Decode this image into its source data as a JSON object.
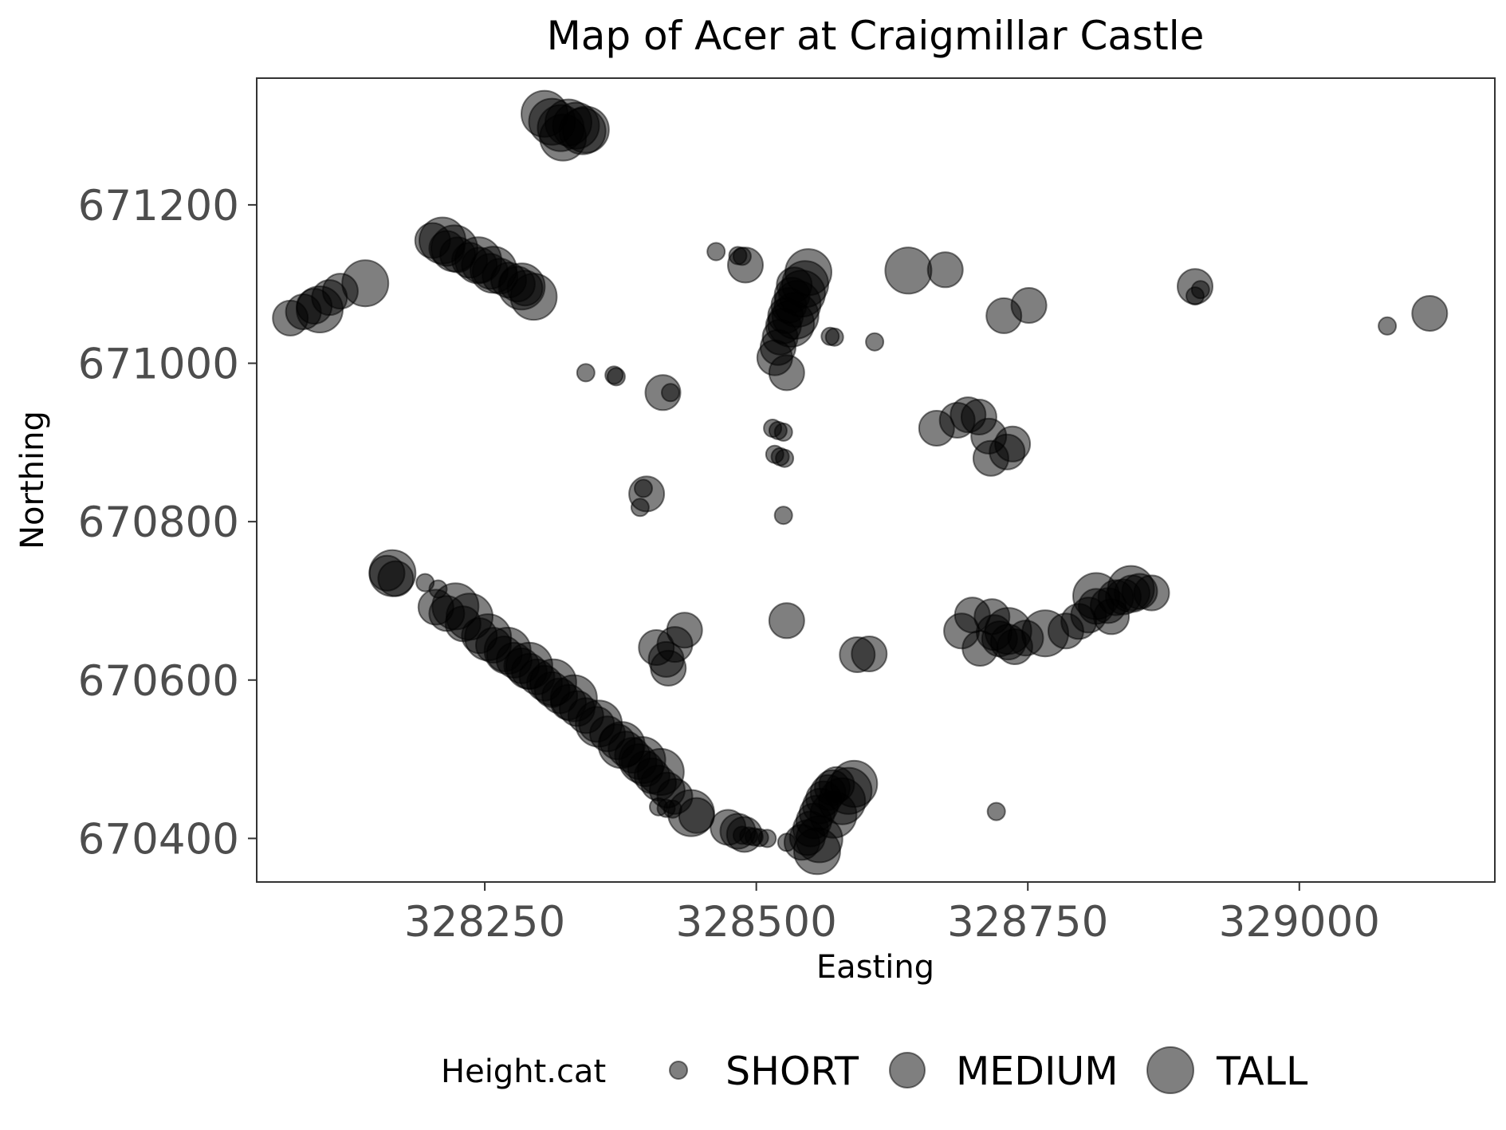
{
  "chart_data": {
    "type": "scatter",
    "title": "Map of Acer at Craigmillar Castle",
    "xlabel": "Easting",
    "ylabel": "Northing",
    "xlim": [
      328040,
      329180
    ],
    "ylim": [
      670345,
      671360
    ],
    "xticks": [
      {
        "value": 328250,
        "label": "328250"
      },
      {
        "value": 328500,
        "label": "328500"
      },
      {
        "value": 328750,
        "label": "328750"
      },
      {
        "value": 329000,
        "label": "329000"
      }
    ],
    "yticks": [
      {
        "value": 670400,
        "label": "670400"
      },
      {
        "value": 670600,
        "label": "670600"
      },
      {
        "value": 670800,
        "label": "670800"
      },
      {
        "value": 671000,
        "label": "671000"
      },
      {
        "value": 671200,
        "label": "671200"
      }
    ],
    "grid": false,
    "point_color": "#000000",
    "point_opacity": 0.5,
    "legend": {
      "title": "Height.cat",
      "position": "bottom",
      "items": [
        {
          "key": "SHORT",
          "label": "SHORT"
        },
        {
          "key": "MEDIUM",
          "label": "MEDIUM"
        },
        {
          "key": "TALL",
          "label": "TALL"
        }
      ]
    },
    "series": [
      {
        "name": "SHORT",
        "points": [
          [
            328343,
            670988
          ],
          [
            328369,
            670985
          ],
          [
            328371,
            670983
          ],
          [
            328421,
            670963
          ],
          [
            328396,
            670842
          ],
          [
            328393,
            670818
          ],
          [
            328463,
            671141
          ],
          [
            328483,
            671136
          ],
          [
            328487,
            671135
          ],
          [
            328568,
            671034
          ],
          [
            328572,
            671033
          ],
          [
            328609,
            671027
          ],
          [
            328515,
            670918
          ],
          [
            328520,
            670915
          ],
          [
            328525,
            670913
          ],
          [
            328517,
            670885
          ],
          [
            328522,
            670882
          ],
          [
            328526,
            670880
          ],
          [
            328525,
            670808
          ],
          [
            328721,
            670434
          ],
          [
            328904,
            671085
          ],
          [
            328909,
            671093
          ],
          [
            329081,
            671047
          ],
          [
            328195,
            670723
          ],
          [
            328207,
            670715
          ],
          [
            328410,
            670440
          ],
          [
            328417,
            670438
          ],
          [
            328423,
            670437
          ],
          [
            328487,
            670404
          ],
          [
            328493,
            670403
          ],
          [
            328498,
            670402
          ],
          [
            328503,
            670401
          ],
          [
            328510,
            670400
          ],
          [
            328528,
            670395
          ]
        ]
      },
      {
        "name": "MEDIUM",
        "points": [
          [
            328071,
            671057
          ],
          [
            328083,
            671065
          ],
          [
            328093,
            671072
          ],
          [
            328107,
            671083
          ],
          [
            328117,
            671091
          ],
          [
            328202,
            671155
          ],
          [
            328215,
            671145
          ],
          [
            328225,
            671137
          ],
          [
            328236,
            671130
          ],
          [
            328245,
            671124
          ],
          [
            328255,
            671116
          ],
          [
            328264,
            671110
          ],
          [
            328272,
            671105
          ],
          [
            328280,
            671100
          ],
          [
            328287,
            671095
          ],
          [
            328160,
            670735
          ],
          [
            328168,
            670728
          ],
          [
            328205,
            670692
          ],
          [
            328215,
            670684
          ],
          [
            328230,
            670671
          ],
          [
            328245,
            670656
          ],
          [
            328258,
            670644
          ],
          [
            328268,
            670633
          ],
          [
            328277,
            670625
          ],
          [
            328284,
            670618
          ],
          [
            328291,
            670611
          ],
          [
            328298,
            670604
          ],
          [
            328305,
            670596
          ],
          [
            328312,
            670588
          ],
          [
            328319,
            670580
          ],
          [
            328327,
            670572
          ],
          [
            328335,
            670564
          ],
          [
            328343,
            670555
          ],
          [
            328353,
            670544
          ],
          [
            328363,
            670532
          ],
          [
            328372,
            670522
          ],
          [
            328380,
            670513
          ],
          [
            328386,
            670505
          ],
          [
            328392,
            670497
          ],
          [
            328398,
            670488
          ],
          [
            328404,
            670479
          ],
          [
            328410,
            670470
          ],
          [
            328418,
            670461
          ],
          [
            328425,
            670453
          ],
          [
            328399,
            670835
          ],
          [
            328414,
            670963
          ],
          [
            328408,
            670641
          ],
          [
            328417,
            670626
          ],
          [
            328419,
            670615
          ],
          [
            328425,
            670645
          ],
          [
            328434,
            670663
          ],
          [
            328445,
            670429
          ],
          [
            328474,
            670414
          ],
          [
            328483,
            670409
          ],
          [
            328489,
            670405
          ],
          [
            328542,
            670395
          ],
          [
            328547,
            670401
          ],
          [
            328550,
            670412
          ],
          [
            328553,
            670422
          ],
          [
            328556,
            670432
          ],
          [
            328559,
            670441
          ],
          [
            328562,
            670450
          ],
          [
            328566,
            670458
          ],
          [
            328570,
            670464
          ],
          [
            328574,
            670468
          ],
          [
            328490,
            671124
          ],
          [
            328535,
            671099
          ],
          [
            328533,
            671086
          ],
          [
            328530,
            671073
          ],
          [
            328527,
            671060
          ],
          [
            328525,
            671047
          ],
          [
            328522,
            671033
          ],
          [
            328520,
            671020
          ],
          [
            328517,
            671007
          ],
          [
            328528,
            670988
          ],
          [
            328528,
            670675
          ],
          [
            328593,
            670632
          ],
          [
            328604,
            670633
          ],
          [
            328674,
            671118
          ],
          [
            328666,
            670918
          ],
          [
            328685,
            670928
          ],
          [
            328695,
            670935
          ],
          [
            328705,
            670932
          ],
          [
            328714,
            670908
          ],
          [
            328716,
            670880
          ],
          [
            328731,
            670888
          ],
          [
            328736,
            670898
          ],
          [
            328706,
            670640
          ],
          [
            328719,
            670660
          ],
          [
            328724,
            670652
          ],
          [
            328732,
            670648
          ],
          [
            328738,
            670642
          ],
          [
            328748,
            670653
          ],
          [
            328728,
            671060
          ],
          [
            328751,
            671073
          ],
          [
            328689,
            670662
          ],
          [
            328699,
            670682
          ],
          [
            328717,
            670680
          ],
          [
            328785,
            670662
          ],
          [
            328797,
            670674
          ],
          [
            328806,
            670682
          ],
          [
            328813,
            670693
          ],
          [
            328824,
            670694
          ],
          [
            328831,
            670704
          ],
          [
            328838,
            670705
          ],
          [
            328846,
            670710
          ],
          [
            328853,
            670712
          ],
          [
            328864,
            670710
          ],
          [
            328827,
            670680
          ],
          [
            328904,
            671097
          ],
          [
            329120,
            671063
          ]
        ]
      },
      {
        "name": "TALL",
        "points": [
          [
            328098,
            671068
          ],
          [
            328140,
            671101
          ],
          [
            328211,
            671155
          ],
          [
            328222,
            671145
          ],
          [
            328244,
            671130
          ],
          [
            328258,
            671118
          ],
          [
            328284,
            671097
          ],
          [
            328295,
            671084
          ],
          [
            328165,
            670735
          ],
          [
            328223,
            670693
          ],
          [
            328236,
            670680
          ],
          [
            328253,
            670654
          ],
          [
            328271,
            670637
          ],
          [
            328291,
            670618
          ],
          [
            328313,
            670597
          ],
          [
            328332,
            670577
          ],
          [
            328355,
            670545
          ],
          [
            328376,
            670518
          ],
          [
            328395,
            670499
          ],
          [
            328412,
            670484
          ],
          [
            328440,
            670432
          ],
          [
            328556,
            670384
          ],
          [
            328558,
            670399
          ],
          [
            328571,
            670430
          ],
          [
            328579,
            670447
          ],
          [
            328585,
            670460
          ],
          [
            328590,
            670469
          ],
          [
            328532,
            671050
          ],
          [
            328536,
            671060
          ],
          [
            328538,
            671075
          ],
          [
            328542,
            671088
          ],
          [
            328545,
            671100
          ],
          [
            328548,
            671115
          ],
          [
            328640,
            671117
          ],
          [
            328732,
            670662
          ],
          [
            328766,
            670659
          ],
          [
            328813,
            670706
          ],
          [
            328845,
            670715
          ],
          [
            328305,
            671315
          ],
          [
            328312,
            671305
          ],
          [
            328320,
            671297
          ],
          [
            328327,
            671304
          ],
          [
            328334,
            671300
          ],
          [
            328340,
            671293
          ],
          [
            328322,
            671285
          ],
          [
            328343,
            671295
          ]
        ]
      }
    ]
  }
}
